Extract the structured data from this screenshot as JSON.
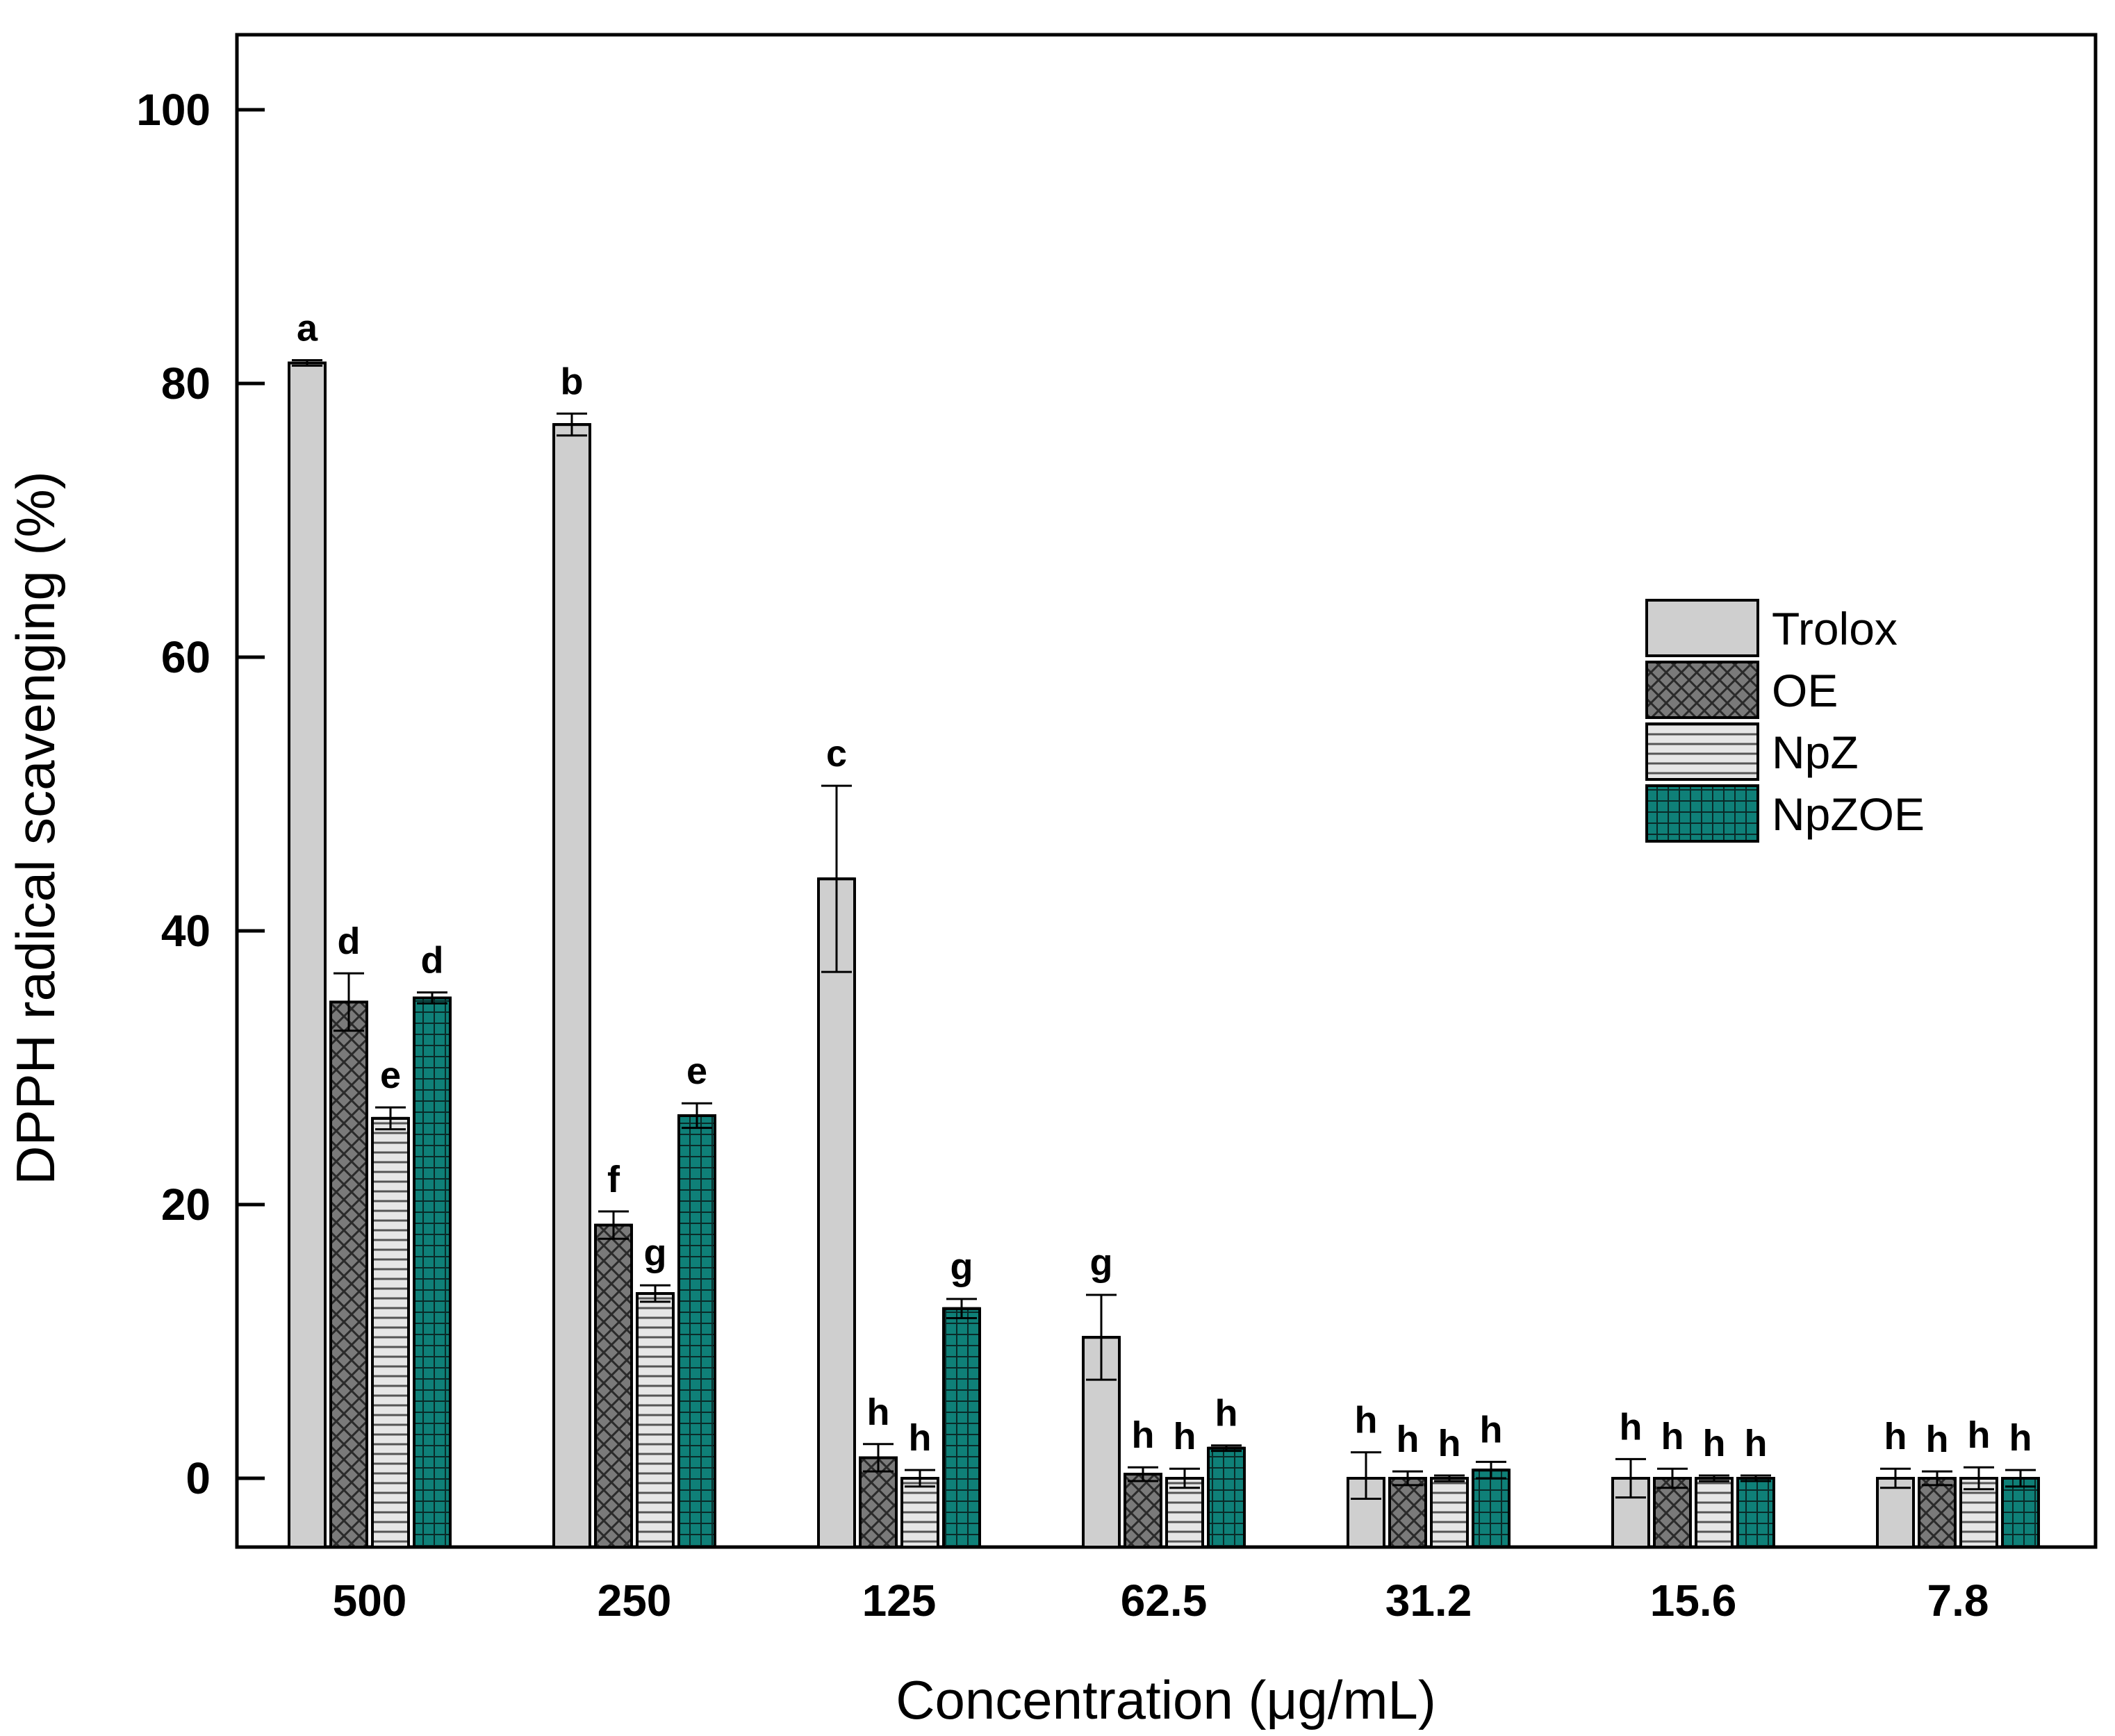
{
  "chart_data": {
    "type": "bar",
    "title": "",
    "xlabel": "Concentration (μg/mL)",
    "ylabel": "DPPH radical scavenging (%)",
    "ylim": [
      -5,
      105
    ],
    "yticks": [
      0,
      20,
      40,
      60,
      80,
      100
    ],
    "grid": false,
    "legend_position": "right",
    "categories": [
      "500",
      "250",
      "125",
      "62.5",
      "31.2",
      "15.6",
      "7.8"
    ],
    "series": [
      {
        "name": "Trolox",
        "pattern": "light",
        "values": [
          81.5,
          77.0,
          43.8,
          10.3,
          0.0,
          0.0,
          0.0
        ],
        "errors": [
          0.2,
          0.8,
          6.8,
          3.1,
          1.9,
          1.4,
          0.7
        ],
        "significance": [
          "a",
          "b",
          "c",
          "g",
          "h",
          "h",
          "h"
        ]
      },
      {
        "name": "OE",
        "pattern": "crosshatch",
        "values": [
          34.8,
          18.5,
          1.5,
          0.3,
          0.0,
          0.0,
          0.0
        ],
        "errors": [
          2.1,
          1.0,
          1.0,
          0.5,
          0.5,
          0.7,
          0.5
        ],
        "significance": [
          "d",
          "f",
          "h",
          "h",
          "h",
          "h",
          "h"
        ]
      },
      {
        "name": "NpZ",
        "pattern": "horizontal-lines",
        "values": [
          26.3,
          13.5,
          0.0,
          0.0,
          0.0,
          0.0,
          0.0
        ],
        "errors": [
          0.8,
          0.6,
          0.6,
          0.7,
          0.2,
          0.2,
          0.8
        ],
        "significance": [
          "e",
          "g",
          "h",
          "h",
          "h",
          "h",
          "h"
        ]
      },
      {
        "name": "NpZOE",
        "pattern": "teal-grid",
        "values": [
          35.1,
          26.5,
          12.4,
          2.2,
          0.6,
          0.0,
          0.0
        ],
        "errors": [
          0.4,
          0.9,
          0.7,
          0.2,
          0.6,
          0.2,
          0.6
        ],
        "significance": [
          "d",
          "e",
          "g",
          "h",
          "h",
          "h",
          "h"
        ]
      }
    ],
    "colors": {
      "trolox": "#cfcfcf",
      "oe": "#7a7a7a",
      "npz": "#dcdcdc",
      "npzoe": "#0f8078",
      "axis": "#000000"
    }
  }
}
